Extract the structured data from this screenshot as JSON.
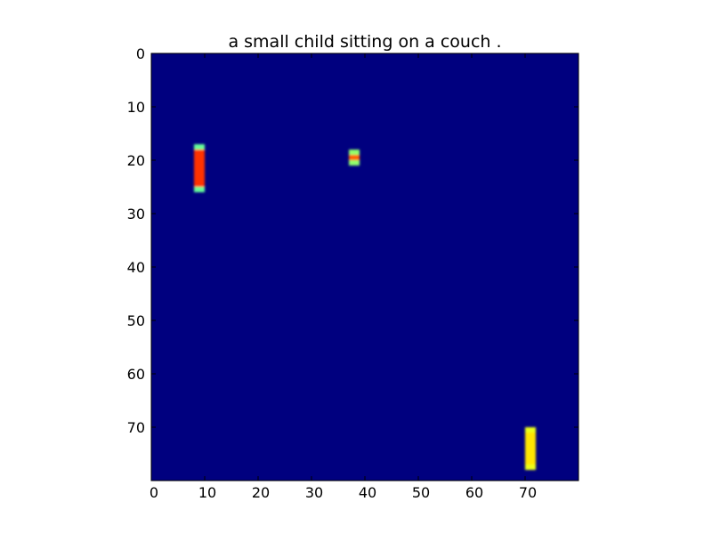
{
  "chart_data": {
    "type": "heatmap",
    "title": "a small child sitting on a couch .",
    "xlabel": "",
    "ylabel": "",
    "xlim": [
      0,
      80
    ],
    "ylim": [
      80,
      0
    ],
    "x_ticks": [
      0,
      10,
      20,
      30,
      40,
      50,
      60,
      70
    ],
    "y_ticks": [
      0,
      10,
      20,
      30,
      40,
      50,
      60,
      70
    ],
    "grid": false,
    "colormap": "jet",
    "colormap_stops": [
      "#00007f",
      "#0000ff",
      "#00ffff",
      "#7fff7f",
      "#ffff00",
      "#ff7f00",
      "#ff0000",
      "#7f0000"
    ],
    "background_value": 0.0,
    "regions": [
      {
        "x": [
          8,
          9
        ],
        "y": [
          17,
          25
        ],
        "edge_value": 0.4,
        "peak_value": 0.8
      },
      {
        "x": [
          37,
          38
        ],
        "y": [
          18,
          20
        ],
        "edge_value": 0.45,
        "peak_value": 0.75
      },
      {
        "x": [
          70,
          71
        ],
        "y": [
          70,
          77
        ],
        "edge_value": 0.55,
        "peak_value": 0.6
      }
    ]
  }
}
